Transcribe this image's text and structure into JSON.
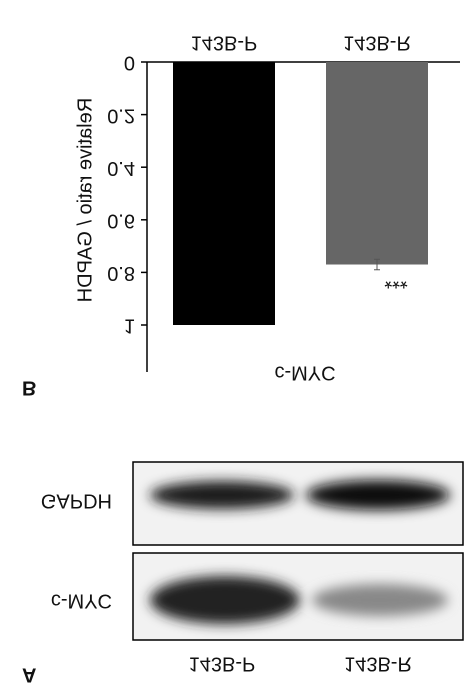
{
  "chart_data": {
    "type": "bar",
    "y_label": "Relative ratio / GAPDH",
    "x_label": "c-MYC",
    "panel_label": "B",
    "categories": [
      "143B-P",
      "143B-R"
    ],
    "values": [
      1,
      0.77
    ],
    "errors": [
      null,
      0.02
    ],
    "colors": [
      "#000000",
      "#666666"
    ],
    "annotations": [
      "***"
    ],
    "ylim": [
      0,
      1
    ],
    "yticks": [
      0,
      0.2,
      0.4,
      0.6,
      0.8,
      1
    ],
    "grid": false
  },
  "blot": {
    "panel_label": "A",
    "rows": [
      "GAPDH",
      "c-MYC"
    ],
    "lanes": [
      "143B-P",
      "143B-R"
    ]
  }
}
